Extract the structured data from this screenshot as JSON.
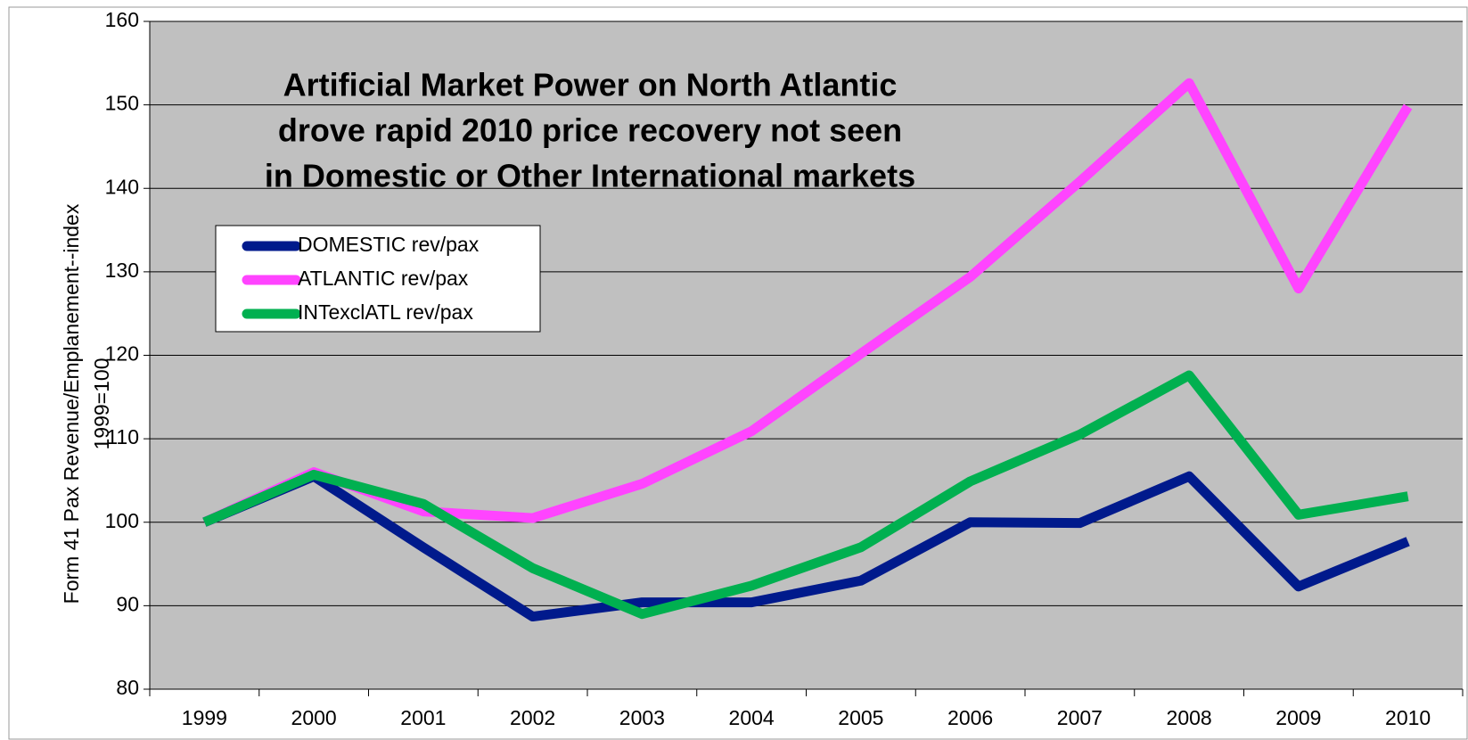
{
  "chart_data": {
    "type": "line",
    "title": [
      "Artificial Market Power on North Atlantic",
      "drove rapid 2010 price recovery not seen",
      "in Domestic or Other International markets"
    ],
    "y_label": [
      "Form 41 Pax Revenue/Emplanement--index",
      "1999=100"
    ],
    "categories": [
      "1999",
      "2000",
      "2001",
      "2002",
      "2003",
      "2004",
      "2005",
      "2006",
      "2007",
      "2008",
      "2009",
      "2010"
    ],
    "series": [
      {
        "name": "DOMESTIC rev/pax",
        "color": "#001a8c",
        "values": [
          100,
          105.5,
          97,
          88.7,
          90.4,
          90.4,
          93,
          100,
          99.9,
          105.5,
          92.3,
          97.7
        ]
      },
      {
        "name": "ATLANTIC rev/pax",
        "color": "#ff44ff",
        "values": [
          100,
          106,
          101.3,
          100.5,
          104.6,
          110.9,
          120.2,
          129.4,
          140.8,
          152.6,
          128,
          149.8
        ]
      },
      {
        "name": "INTexclATL rev/pax",
        "color": "#00b050",
        "values": [
          100,
          105.7,
          102.2,
          94.5,
          89,
          92.4,
          97,
          104.9,
          110.5,
          117.6,
          100.9,
          103.1
        ]
      }
    ],
    "ylim": [
      80,
      160
    ],
    "yticks": [
      80,
      90,
      100,
      110,
      120,
      130,
      140,
      150,
      160
    ],
    "grid": true,
    "legend": "upper left"
  }
}
